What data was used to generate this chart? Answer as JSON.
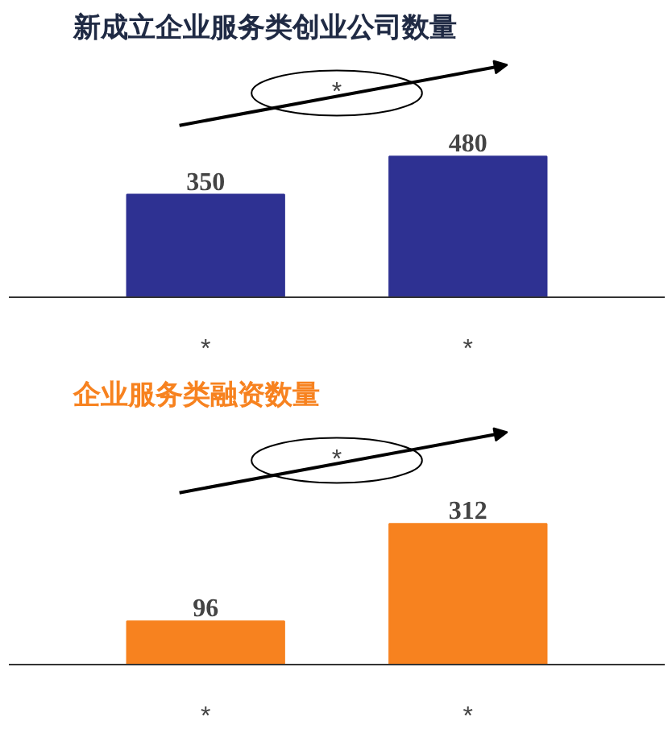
{
  "chart_data": [
    {
      "type": "bar",
      "title": "新成立企业服务类创业公司数量",
      "categories": [
        "*",
        "*"
      ],
      "values": [
        350,
        480
      ],
      "color": "#2e3192",
      "data_labels": true,
      "annotations": [
        "*"
      ]
    },
    {
      "type": "bar",
      "title": "企业服务类融资数量",
      "categories": [
        "*",
        "*"
      ],
      "values": [
        96,
        312
      ],
      "color": "#f7821f",
      "data_labels": true,
      "annotations": [
        "*"
      ]
    }
  ]
}
